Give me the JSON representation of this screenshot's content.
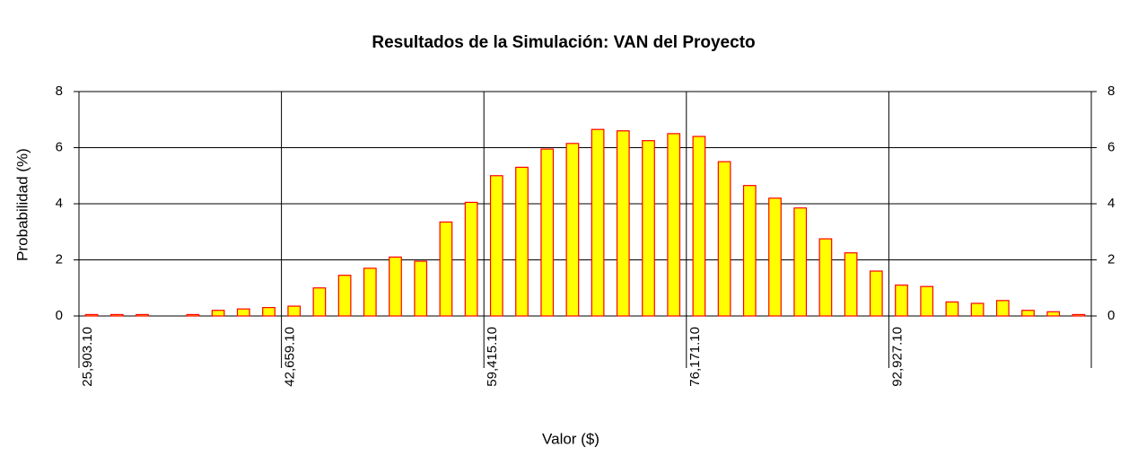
{
  "chart_data": {
    "type": "histogram",
    "title": "Resultados de la Simulación: VAN del Proyecto",
    "x_label": "Valor ($)",
    "y_label": "Probabilidad (%)",
    "bins": [
      25903.1,
      27997.6,
      30092.1,
      32186.6,
      34281.1,
      36375.6,
      38470.1,
      40564.6,
      42659.1,
      44753.6,
      46848.1,
      48942.6,
      51037.1,
      53131.6,
      55226.1,
      57320.6,
      59415.1,
      61509.6,
      63604.1,
      65698.6,
      67793.1,
      69887.6,
      71982.1,
      74076.6,
      76171.1,
      78265.6,
      80360.1,
      82454.6,
      84549.1,
      86643.6,
      88738.1,
      90832.6,
      92927.1,
      95021.6,
      97116.1,
      99210.6,
      101305.1,
      103399.6,
      105494.1,
      107588.6,
      109683.1
    ],
    "values": [
      0.05,
      0.05,
      0.05,
      0,
      0.05,
      0.2,
      0.25,
      0.3,
      0.35,
      1.0,
      1.45,
      1.7,
      2.1,
      1.95,
      3.35,
      4.05,
      5.0,
      5.3,
      5.95,
      6.15,
      6.65,
      6.6,
      6.25,
      6.5,
      6.4,
      5.5,
      4.65,
      4.2,
      3.85,
      2.75,
      2.25,
      1.6,
      1.1,
      1.05,
      0.5,
      0.45,
      0.55,
      0.2,
      0.15,
      0.05
    ],
    "color": "#ffff00",
    "edge_color": "#ff0000",
    "xlim": [
      25903.1,
      109683.1
    ],
    "xticks": [
      {
        "value": 25903.1,
        "label": "25,903.10"
      },
      {
        "value": 42659.1,
        "label": "42,659.10"
      },
      {
        "value": 59415.1,
        "label": "59,415.10"
      },
      {
        "value": 76171.1,
        "label": "76,171.10"
      },
      {
        "value": 92927.1,
        "label": "92,927.10"
      }
    ],
    "ylim": [
      0,
      8
    ],
    "yticks": [
      0,
      2,
      4,
      6,
      8
    ],
    "y2lim": [
      0,
      8
    ],
    "y2ticks": [
      0,
      2,
      4,
      6,
      8
    ],
    "grid": true
  }
}
